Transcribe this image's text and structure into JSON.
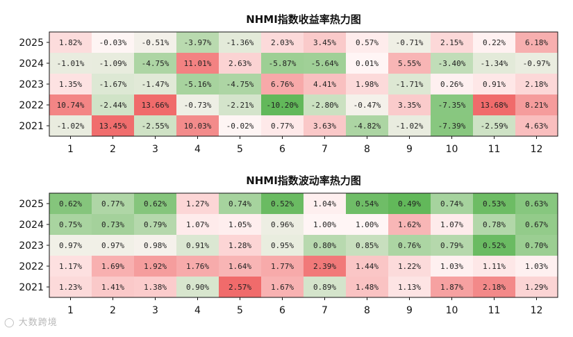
{
  "watermark": "大数跨境",
  "colors": {
    "neg_max": "#62b85a",
    "neutral": "#fff5f5",
    "pos_max": "#f06b6b"
  },
  "chart_data": [
    {
      "type": "heatmap",
      "title": "NHMI指数收益率热力图",
      "x": [
        "1",
        "2",
        "3",
        "4",
        "5",
        "6",
        "7",
        "8",
        "9",
        "10",
        "11",
        "12"
      ],
      "y": [
        "2025",
        "2024",
        "2023",
        "2022",
        "2021"
      ],
      "labels": [
        [
          "1.82%",
          "-0.03%",
          "-0.51%",
          "-3.97%",
          "-1.36%",
          "2.03%",
          "3.45%",
          "0.57%",
          "-0.71%",
          "2.15%",
          "0.22%",
          "6.18%"
        ],
        [
          "-1.01%",
          "-1.09%",
          "-4.75%",
          "11.01%",
          "2.63%",
          "-5.87%",
          "-5.64%",
          "0.01%",
          "5.55%",
          "-3.40%",
          "-1.34%",
          "-0.97%"
        ],
        [
          "1.35%",
          "-1.67%",
          "-1.47%",
          "-5.16%",
          "-4.75%",
          "6.76%",
          "4.41%",
          "1.98%",
          "-1.71%",
          "0.26%",
          "0.91%",
          "2.18%"
        ],
        [
          "10.74%",
          "-2.44%",
          "13.66%",
          "-0.73%",
          "-2.21%",
          "-10.20%",
          "-2.80%",
          "-0.47%",
          "3.35%",
          "-7.35%",
          "13.68%",
          "8.21%"
        ],
        [
          "-1.02%",
          "13.45%",
          "-2.55%",
          "10.03%",
          "-0.02%",
          "0.77%",
          "3.63%",
          "-4.82%",
          "-1.02%",
          "-7.39%",
          "-2.59%",
          "4.63%"
        ]
      ],
      "values": [
        [
          1.82,
          -0.03,
          -0.51,
          -3.97,
          -1.36,
          2.03,
          3.45,
          0.57,
          -0.71,
          2.15,
          0.22,
          6.18
        ],
        [
          -1.01,
          -1.09,
          -4.75,
          11.01,
          2.63,
          -5.87,
          -5.64,
          0.01,
          5.55,
          -3.4,
          -1.34,
          -0.97
        ],
        [
          1.35,
          -1.67,
          -1.47,
          -5.16,
          -4.75,
          6.76,
          4.41,
          1.98,
          -1.71,
          0.26,
          0.91,
          2.18
        ],
        [
          10.74,
          -2.44,
          13.66,
          -0.73,
          -2.21,
          -10.2,
          -2.8,
          -0.47,
          3.35,
          -7.35,
          13.68,
          8.21
        ],
        [
          -1.02,
          13.45,
          -2.55,
          10.03,
          -0.02,
          0.77,
          3.63,
          -4.82,
          -1.02,
          -7.39,
          -2.59,
          4.63
        ]
      ],
      "color_center": 0,
      "color_range": [
        -10.2,
        13.68
      ]
    },
    {
      "type": "heatmap",
      "title": "NHMI指数波动率热力图",
      "x": [
        "1",
        "2",
        "3",
        "4",
        "5",
        "6",
        "7",
        "8",
        "9",
        "10",
        "11",
        "12"
      ],
      "y": [
        "2025",
        "2024",
        "2023",
        "2022",
        "2021"
      ],
      "labels": [
        [
          "0.62%",
          "0.77%",
          "0.62%",
          "1.27%",
          "0.74%",
          "0.52%",
          "1.04%",
          "0.54%",
          "0.49%",
          "0.74%",
          "0.53%",
          "0.63%"
        ],
        [
          "0.75%",
          "0.73%",
          "0.79%",
          "1.07%",
          "1.05%",
          "0.96%",
          "1.00%",
          "1.00%",
          "1.62%",
          "1.07%",
          "0.78%",
          "0.67%"
        ],
        [
          "0.97%",
          "0.97%",
          "0.98%",
          "0.91%",
          "1.28%",
          "0.95%",
          "0.80%",
          "0.85%",
          "0.76%",
          "0.79%",
          "0.52%",
          "0.70%"
        ],
        [
          "1.17%",
          "1.69%",
          "1.92%",
          "1.76%",
          "1.64%",
          "1.77%",
          "2.39%",
          "1.44%",
          "1.22%",
          "1.03%",
          "1.11%",
          "1.03%"
        ],
        [
          "1.23%",
          "1.41%",
          "1.38%",
          "0.90%",
          "2.57%",
          "1.67%",
          "0.89%",
          "1.48%",
          "1.13%",
          "1.87%",
          "2.18%",
          "1.29%"
        ]
      ],
      "values": [
        [
          0.62,
          0.77,
          0.62,
          1.27,
          0.74,
          0.52,
          1.04,
          0.54,
          0.49,
          0.74,
          0.53,
          0.63
        ],
        [
          0.75,
          0.73,
          0.79,
          1.07,
          1.05,
          0.96,
          1.0,
          1.0,
          1.62,
          1.07,
          0.78,
          0.67
        ],
        [
          0.97,
          0.97,
          0.98,
          0.91,
          1.28,
          0.95,
          0.8,
          0.85,
          0.76,
          0.79,
          0.52,
          0.7
        ],
        [
          1.17,
          1.69,
          1.92,
          1.76,
          1.64,
          1.77,
          2.39,
          1.44,
          1.22,
          1.03,
          1.11,
          1.03
        ],
        [
          1.23,
          1.41,
          1.38,
          0.9,
          2.57,
          1.67,
          0.89,
          1.48,
          1.13,
          1.87,
          2.18,
          1.29
        ]
      ],
      "color_center": 1.0,
      "color_range": [
        0.49,
        2.57
      ]
    }
  ]
}
